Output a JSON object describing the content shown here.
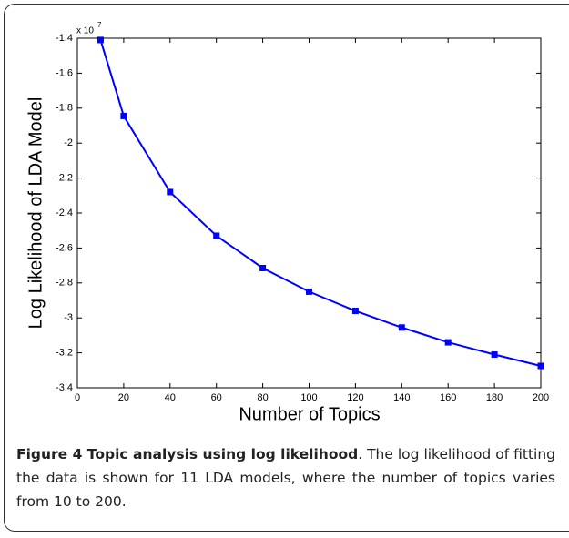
{
  "chart_data": {
    "type": "line",
    "y_multiplier": {
      "base": "x 10",
      "exponent": "7"
    },
    "xlabel": "Number of Topics",
    "ylabel": "Log Likelihood of LDA Model",
    "x": [
      10,
      20,
      40,
      60,
      80,
      100,
      120,
      140,
      160,
      180,
      200
    ],
    "series": [
      {
        "color": "#0000ff",
        "values": [
          -1.41,
          -1.845,
          -2.28,
          -2.53,
          -2.715,
          -2.85,
          -2.96,
          -3.055,
          -3.14,
          -3.21,
          -3.275
        ]
      }
    ],
    "xlim": [
      0,
      200
    ],
    "xticks": [
      0,
      20,
      40,
      60,
      80,
      100,
      120,
      140,
      160,
      180,
      200
    ],
    "ylim": [
      -3.4,
      -1.4
    ],
    "yticks": [
      -3.4,
      -3.2,
      -3,
      -2.8,
      -2.6,
      -2.4,
      -2.2,
      -2,
      -1.8,
      -1.6,
      -1.4
    ],
    "grid": false
  },
  "caption": {
    "title": "Figure 4 Topic analysis using log likelihood",
    "body": ". The log likelihood of fitting the data is shown for 11 LDA models, where the number of topics varies from 10 to 200."
  }
}
